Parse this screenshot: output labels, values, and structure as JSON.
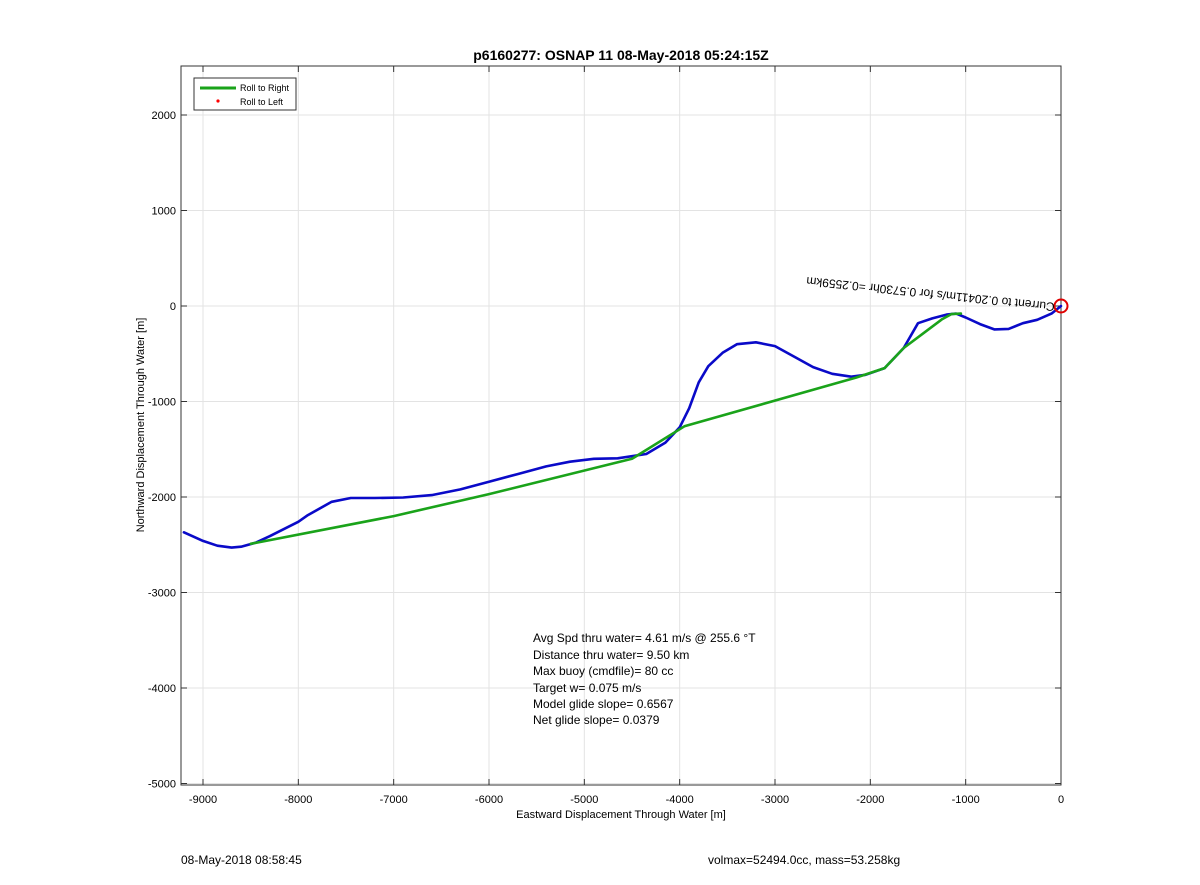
{
  "footer": {
    "timestamp": "08-May-2018 08:58:45",
    "mass_info": "volmax=52494.0cc, mass=53.258kg"
  },
  "chart_data": {
    "type": "line",
    "title": "p6160277: OSNAP 11 08-May-2018 05:24:15Z",
    "xlabel": "Eastward Displacement Through Water [m]",
    "ylabel": "Northward Displacement Through Water [m]",
    "xlim": [
      -9200,
      0
    ],
    "ylim": [
      -5000,
      2500
    ],
    "xticks": [
      -9000,
      -8000,
      -7000,
      -6000,
      -5000,
      -4000,
      -3000,
      -2000,
      -1000,
      0
    ],
    "yticks": [
      -5000,
      -4000,
      -3000,
      -2000,
      -1000,
      0,
      1000,
      2000
    ],
    "grid": true,
    "legend": {
      "position": "top-left",
      "entries": [
        {
          "label": "Roll to Right",
          "color": "#1aa31a",
          "style": "line"
        },
        {
          "label": "Roll to Left",
          "color": "#ff0000",
          "style": "dot"
        }
      ]
    },
    "series": [
      {
        "color": "#0a0ac8",
        "x": [
          -9200,
          -9000,
          -8850,
          -8700,
          -8600,
          -8450,
          -8300,
          -8000,
          -7900,
          -7650,
          -7450,
          -7200,
          -6900,
          -6600,
          -6300,
          -6000,
          -5700,
          -5400,
          -5150,
          -4900,
          -4650,
          -4350,
          -4150,
          -4000,
          -3900,
          -3800,
          -3700,
          -3550,
          -3400,
          -3200,
          -3000,
          -2800,
          -2600,
          -2400,
          -2200,
          -2050,
          -1850,
          -1650,
          -1500,
          -1350,
          -1200,
          -1100,
          -1000,
          -850,
          -700,
          -550,
          -400,
          -250,
          -100,
          0
        ],
        "y": [
          -2370,
          -2460,
          -2510,
          -2530,
          -2520,
          -2480,
          -2410,
          -2260,
          -2190,
          -2050,
          -2010,
          -2010,
          -2005,
          -1980,
          -1920,
          -1840,
          -1760,
          -1680,
          -1630,
          -1600,
          -1595,
          -1550,
          -1430,
          -1270,
          -1070,
          -800,
          -630,
          -490,
          -400,
          -380,
          -420,
          -530,
          -640,
          -710,
          -740,
          -720,
          -650,
          -440,
          -180,
          -130,
          -90,
          -80,
          -120,
          -190,
          -245,
          -240,
          -180,
          -145,
          -80,
          0
        ]
      },
      {
        "color": "#1aa31a",
        "x": [
          -8500,
          -7000,
          -6000,
          -4500,
          -3950,
          -2150,
          -1850,
          -1650,
          -1450,
          -1250,
          -1150,
          -1050
        ],
        "y": [
          -2490,
          -2200,
          -1970,
          -1600,
          -1260,
          -750,
          -650,
          -440,
          -290,
          -140,
          -85,
          -80
        ]
      }
    ],
    "annotations": {
      "start_marker": {
        "x": 0,
        "y": 0,
        "color": "#e00000"
      },
      "current_label": "Current to 0.20411m/s for 0.5730hr =0.2559km",
      "stats": [
        "Avg Spd thru water=  4.61 m/s @ 255.6 °T",
        "Distance thru water=  9.50 km",
        "Max buoy (cmdfile)= 80 cc",
        "Target w= 0.075 m/s",
        "Model glide slope= 0.6567",
        "Net glide slope= 0.0379"
      ]
    }
  }
}
